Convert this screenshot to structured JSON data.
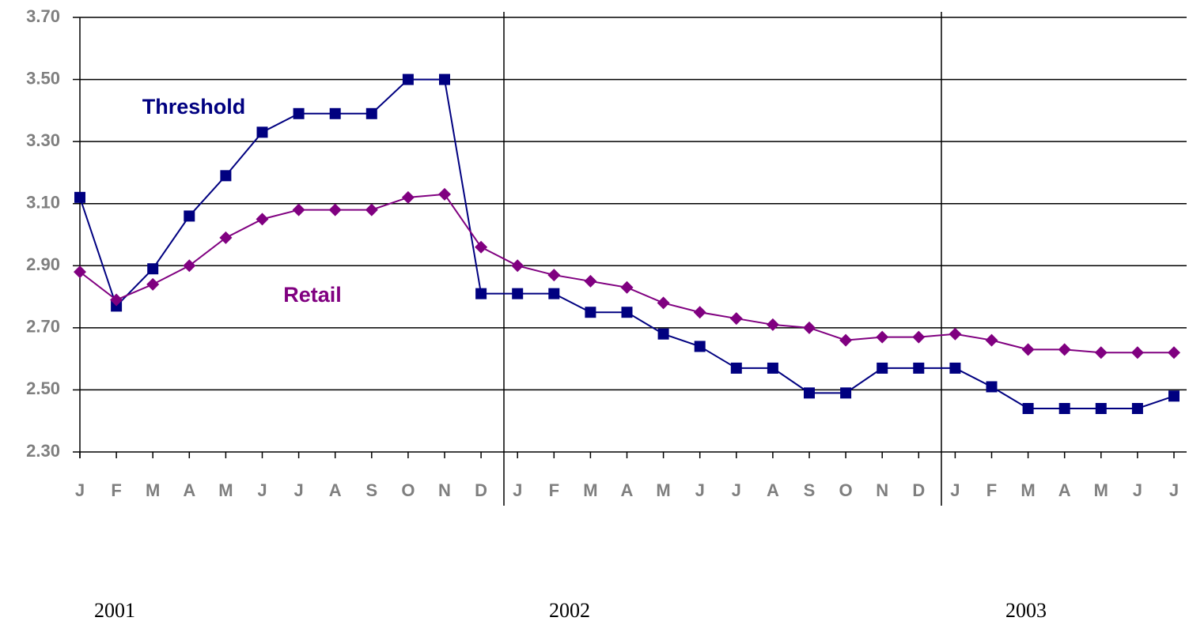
{
  "chart_data": {
    "type": "line",
    "categories": [
      "J",
      "F",
      "M",
      "A",
      "M",
      "J",
      "J",
      "A",
      "S",
      "O",
      "N",
      "D",
      "J",
      "F",
      "M",
      "A",
      "M",
      "J",
      "J",
      "A",
      "S",
      "O",
      "N",
      "D",
      "J",
      "F",
      "M",
      "A",
      "M",
      "J",
      "J"
    ],
    "x_groups": [
      "2001",
      "2002",
      "2003"
    ],
    "series": [
      {
        "name": "Threshold",
        "color": "#000080",
        "marker": "square",
        "values": [
          3.12,
          2.77,
          2.89,
          3.06,
          3.19,
          3.33,
          3.39,
          3.39,
          3.39,
          3.5,
          3.5,
          2.81,
          2.81,
          2.81,
          2.75,
          2.75,
          2.68,
          2.64,
          2.57,
          2.57,
          2.49,
          2.49,
          2.57,
          2.57,
          2.57,
          2.51,
          2.44,
          2.44,
          2.44,
          2.44,
          2.48
        ]
      },
      {
        "name": "Retail",
        "color": "#800080",
        "marker": "diamond",
        "values": [
          2.88,
          2.79,
          2.84,
          2.9,
          2.99,
          3.05,
          3.08,
          3.08,
          3.08,
          3.12,
          3.13,
          2.96,
          2.9,
          2.87,
          2.85,
          2.83,
          2.78,
          2.75,
          2.73,
          2.71,
          2.7,
          2.66,
          2.67,
          2.67,
          2.68,
          2.66,
          2.63,
          2.63,
          2.62,
          2.62,
          2.62
        ]
      }
    ],
    "ylim": [
      2.3,
      3.7
    ],
    "yticks": [
      {
        "value": 2.3,
        "label": "2.30"
      },
      {
        "value": 2.5,
        "label": "2.50"
      },
      {
        "value": 2.7,
        "label": "2.70"
      },
      {
        "value": 2.9,
        "label": "2.90"
      },
      {
        "value": 3.1,
        "label": "3.10"
      },
      {
        "value": 3.3,
        "label": "3.30"
      },
      {
        "value": 3.5,
        "label": "3.50"
      },
      {
        "value": 3.7,
        "label": "3.70"
      }
    ],
    "grid": true
  }
}
